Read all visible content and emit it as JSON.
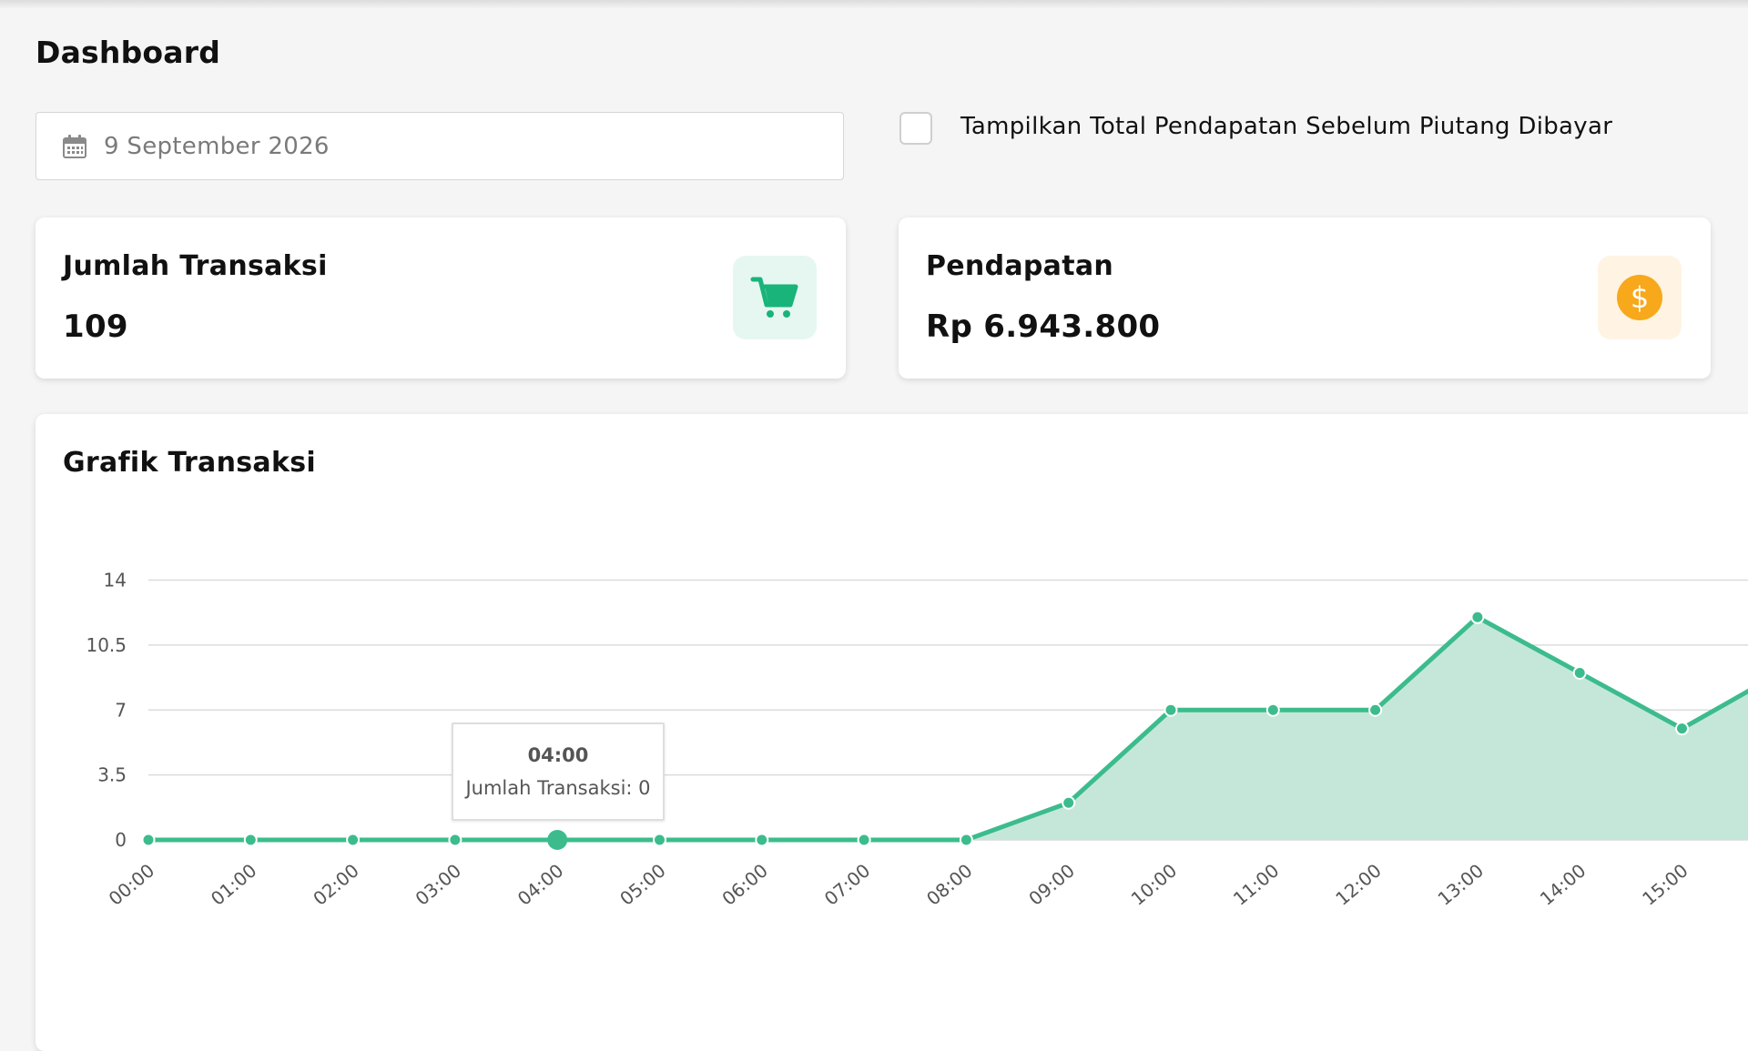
{
  "header": {
    "title": "Dashboard"
  },
  "filters": {
    "date_value": "9 September 2026",
    "checkbox_label": "Tampilkan Total Pendapatan Sebelum Piutang Dibayar",
    "checkbox_checked": false
  },
  "stats": {
    "transactions": {
      "title": "Jumlah Transaksi",
      "value": "109",
      "icon": "cart-icon",
      "accent": "#18b47a",
      "icon_bg": "#e6f7f1"
    },
    "revenue": {
      "title": "Pendapatan",
      "value": "Rp 6.943.800",
      "icon": "dollar-coin-icon",
      "accent": "#f7a81b",
      "icon_bg": "#fff4e3"
    }
  },
  "chart": {
    "title": "Grafik Transaksi",
    "tooltip": {
      "title": "04:00",
      "label": "Jumlah Transaksi: 0"
    }
  },
  "chart_data": {
    "type": "area",
    "x": [
      "00:00",
      "01:00",
      "02:00",
      "03:00",
      "04:00",
      "05:00",
      "06:00",
      "07:00",
      "08:00",
      "09:00",
      "10:00",
      "11:00",
      "12:00",
      "13:00",
      "14:00",
      "15:00"
    ],
    "series": [
      {
        "values": [
          0,
          0,
          0,
          0,
          0,
          0,
          0,
          0,
          0,
          2,
          7,
          7,
          7,
          12,
          9,
          6
        ],
        "color": "#3cbc8d",
        "fill": "#c5e7da"
      }
    ],
    "y_ticks": [
      "0",
      "3.5",
      "7",
      "10.5",
      "14"
    ],
    "ylim": [
      0,
      14
    ],
    "grid": true,
    "highlight_index": 4
  }
}
